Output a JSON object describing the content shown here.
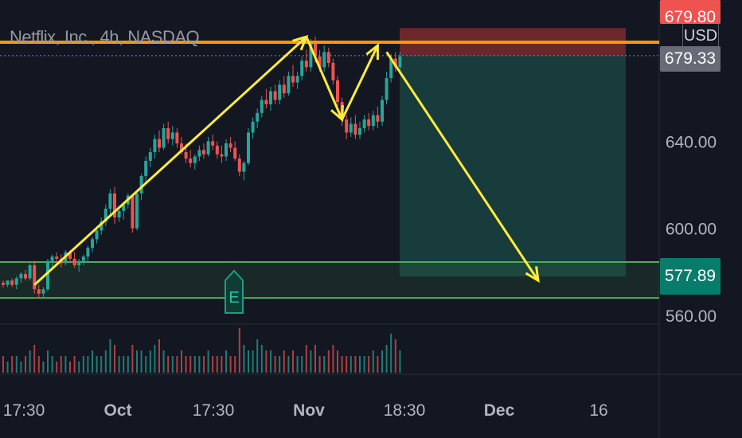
{
  "header": {
    "symbol_title": "Netflix, Inc., 4h, NASDAQ",
    "currency": "USD"
  },
  "price_tags": {
    "top_red": "679.80",
    "current": "679.33",
    "target": "577.89"
  },
  "colors": {
    "background": "#131722",
    "bull": "#26a69a",
    "bear": "#ef5350",
    "resistance": "#ff9800",
    "support": "#4caf50",
    "arrows": "#ffeb3b",
    "target_zone": "#1e5a50",
    "stop_zone": "#7a2a2e"
  },
  "chart_data": {
    "type": "candlestick",
    "symbol": "Netflix, Inc.",
    "interval": "4h",
    "exchange": "NASDAQ",
    "currency": "USD",
    "y_axis": {
      "ticks": [
        640.0,
        600.0,
        560.0
      ],
      "tick_labels": [
        "640.00",
        "600.00",
        "560.00"
      ],
      "range": [
        553,
        692
      ]
    },
    "x_axis": {
      "tick_labels": [
        "17:30",
        "Oct",
        "17:30",
        "Nov",
        "18:30",
        "Dec",
        "16"
      ]
    },
    "levels": {
      "resistance": 685.5,
      "support_zone": [
        568,
        584.5
      ],
      "current_price": 679.33,
      "target_price": 577.89,
      "stop_price": 692
    },
    "candles": [
      [
        575,
        576,
        573,
        574
      ],
      [
        574,
        576,
        573,
        576
      ],
      [
        576,
        577,
        573,
        574
      ],
      [
        574,
        578,
        572,
        577
      ],
      [
        577,
        580,
        575,
        579
      ],
      [
        579,
        581,
        576,
        577
      ],
      [
        577,
        584,
        576,
        583
      ],
      [
        583,
        585,
        570,
        572
      ],
      [
        572,
        574,
        568,
        570
      ],
      [
        570,
        573,
        568,
        572
      ],
      [
        572,
        586,
        571,
        585
      ],
      [
        585,
        588,
        582,
        587
      ],
      [
        587,
        589,
        583,
        586
      ],
      [
        586,
        588,
        582,
        584
      ],
      [
        584,
        590,
        583,
        589
      ],
      [
        589,
        590,
        584,
        586
      ],
      [
        586,
        589,
        582,
        583
      ],
      [
        583,
        586,
        580,
        585
      ],
      [
        585,
        588,
        583,
        587
      ],
      [
        587,
        592,
        585,
        591
      ],
      [
        591,
        596,
        589,
        595
      ],
      [
        595,
        601,
        593,
        599
      ],
      [
        599,
        605,
        597,
        603
      ],
      [
        603,
        611,
        601,
        609
      ],
      [
        609,
        618,
        606,
        616
      ],
      [
        616,
        619,
        602,
        605
      ],
      [
        605,
        610,
        603,
        608
      ],
      [
        608,
        612,
        604,
        611
      ],
      [
        611,
        616,
        609,
        615
      ],
      [
        615,
        614,
        598,
        600
      ],
      [
        600,
        617,
        599,
        616
      ],
      [
        616,
        625,
        613,
        624
      ],
      [
        624,
        633,
        621,
        631
      ],
      [
        631,
        637,
        628,
        635
      ],
      [
        635,
        643,
        632,
        641
      ],
      [
        641,
        645,
        635,
        637
      ],
      [
        637,
        648,
        636,
        646
      ],
      [
        646,
        649,
        639,
        641
      ],
      [
        641,
        647,
        638,
        644
      ],
      [
        644,
        646,
        637,
        639
      ],
      [
        639,
        642,
        634,
        635
      ],
      [
        635,
        639,
        630,
        632
      ],
      [
        632,
        636,
        628,
        630
      ],
      [
        630,
        634,
        627,
        633
      ],
      [
        633,
        638,
        631,
        636
      ],
      [
        636,
        639,
        632,
        634
      ],
      [
        634,
        642,
        633,
        640
      ],
      [
        640,
        643,
        636,
        638
      ],
      [
        638,
        640,
        632,
        634
      ],
      [
        634,
        638,
        630,
        633
      ],
      [
        633,
        641,
        631,
        639
      ],
      [
        639,
        642,
        635,
        637
      ],
      [
        637,
        640,
        631,
        632
      ],
      [
        632,
        634,
        624,
        626
      ],
      [
        626,
        631,
        622,
        630
      ],
      [
        630,
        646,
        629,
        644
      ],
      [
        644,
        651,
        641,
        649
      ],
      [
        649,
        655,
        646,
        653
      ],
      [
        653,
        661,
        651,
        659
      ],
      [
        659,
        664,
        655,
        657
      ],
      [
        657,
        665,
        654,
        663
      ],
      [
        663,
        666,
        657,
        659
      ],
      [
        659,
        668,
        657,
        666
      ],
      [
        666,
        670,
        660,
        662
      ],
      [
        662,
        672,
        661,
        670
      ],
      [
        670,
        675,
        665,
        667
      ],
      [
        667,
        672,
        664,
        670
      ],
      [
        670,
        679,
        668,
        677
      ],
      [
        677,
        682,
        672,
        674
      ],
      [
        674,
        687,
        672,
        685
      ],
      [
        685,
        688,
        676,
        679
      ],
      [
        679,
        682,
        672,
        674
      ],
      [
        674,
        684,
        672,
        681
      ],
      [
        681,
        683,
        674,
        676
      ],
      [
        676,
        678,
        666,
        668
      ],
      [
        668,
        670,
        656,
        658
      ],
      [
        658,
        660,
        647,
        650
      ],
      [
        650,
        652,
        641,
        644
      ],
      [
        644,
        651,
        642,
        648
      ],
      [
        648,
        652,
        641,
        643
      ],
      [
        643,
        649,
        641,
        646
      ],
      [
        646,
        652,
        644,
        650
      ],
      [
        650,
        653,
        645,
        647
      ],
      [
        647,
        654,
        645,
        652
      ],
      [
        652,
        656,
        646,
        649
      ],
      [
        649,
        661,
        647,
        659
      ],
      [
        659,
        672,
        657,
        669
      ],
      [
        669,
        680,
        667,
        678
      ],
      [
        678,
        681,
        672,
        674
      ],
      [
        674,
        681,
        672,
        679
      ]
    ],
    "volume": [
      3,
      2,
      3,
      3,
      2,
      3,
      4,
      5,
      3,
      2,
      4,
      3,
      2,
      3,
      3,
      2,
      3,
      2,
      3,
      3,
      4,
      3,
      3,
      4,
      6,
      5,
      3,
      3,
      3,
      5,
      4,
      4,
      3,
      4,
      5,
      6,
      4,
      3,
      3,
      3,
      4,
      3,
      3,
      3,
      3,
      3,
      4,
      3,
      3,
      3,
      4,
      3,
      3,
      8,
      5,
      4,
      4,
      6,
      5,
      4,
      4,
      3,
      3,
      4,
      3,
      4,
      3,
      3,
      5,
      4,
      5,
      3,
      3,
      4,
      5,
      4,
      3,
      3,
      3,
      3,
      3,
      3,
      3,
      4,
      3,
      4,
      5,
      7,
      6,
      4
    ],
    "annotations": [
      {
        "type": "trend_arrow",
        "from": [
          7,
          574
        ],
        "to": [
          68,
          688
        ]
      },
      {
        "type": "trend_arrow",
        "from": [
          68,
          688
        ],
        "to": [
          76,
          650
        ]
      },
      {
        "type": "trend_arrow",
        "from": [
          76,
          650
        ],
        "to": [
          84,
          684
        ]
      },
      {
        "type": "projection_arrow",
        "from": [
          86,
          681
        ],
        "to": [
          120,
          576
        ]
      },
      {
        "type": "earnings_marker",
        "label": "E",
        "index": 50
      }
    ]
  }
}
